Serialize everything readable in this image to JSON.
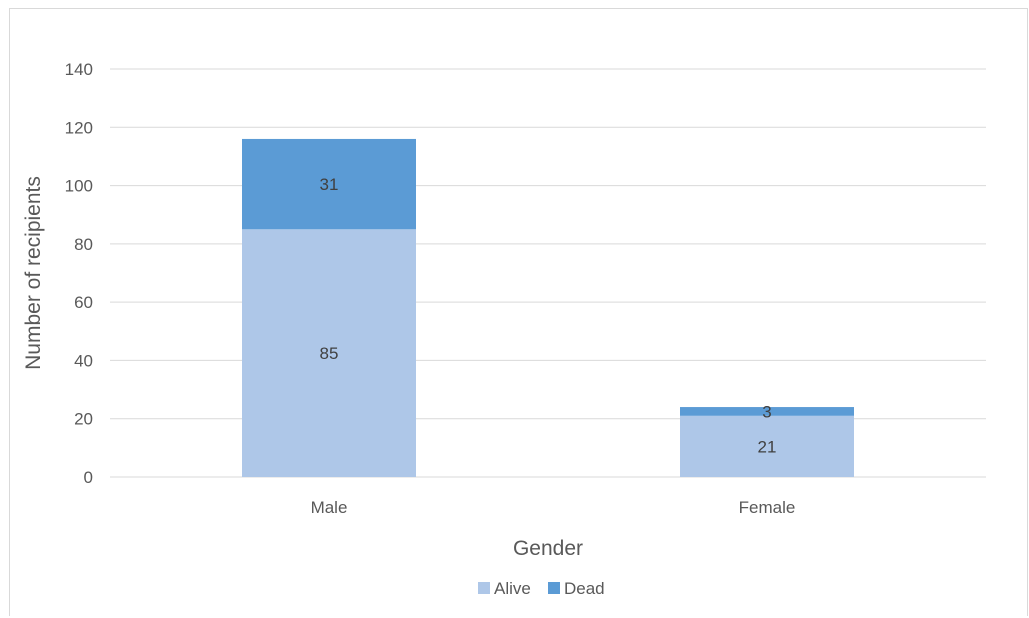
{
  "chart_data": {
    "type": "bar",
    "stacked": true,
    "title": "",
    "categories": [
      "Male",
      "Female"
    ],
    "series": [
      {
        "name": "Alive",
        "values": [
          85,
          21
        ],
        "color": "#aec7e8"
      },
      {
        "name": "Dead",
        "values": [
          31,
          3
        ],
        "color": "#5b9bd5"
      }
    ],
    "yticks": [
      0,
      20,
      40,
      60,
      80,
      100,
      120,
      140
    ],
    "ylim": [
      0,
      140
    ],
    "xlabel": "Gender",
    "ylabel": "Number of recipients",
    "grid": true,
    "legend": "bottom"
  }
}
